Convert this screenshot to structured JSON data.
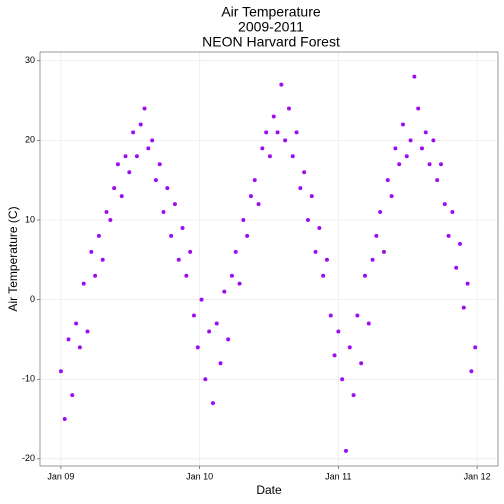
{
  "chart_data": {
    "type": "scatter",
    "title": [
      "Air Temperature",
      "2009-2011",
      "NEON Harvard Forest"
    ],
    "x_label": "Date",
    "y_label": "Air Temperature (C)",
    "color": "#9b0ef0",
    "grid": true,
    "xlim": [
      -55,
      1150
    ],
    "xticks": [
      {
        "value": 0,
        "label": "Jan 09"
      },
      {
        "value": 365,
        "label": "Jan 10"
      },
      {
        "value": 730,
        "label": "Jan 11"
      },
      {
        "value": 1095,
        "label": "Jan 12"
      }
    ],
    "ylim": [
      -20.9,
      31.1
    ],
    "yticks": [
      -20,
      -10,
      0,
      10,
      20,
      30
    ],
    "x": [
      0,
      10,
      20,
      30,
      40,
      50,
      60,
      70,
      80,
      90,
      100,
      110,
      120,
      130,
      140,
      150,
      160,
      170,
      180,
      190,
      200,
      210,
      220,
      230,
      240,
      250,
      260,
      270,
      280,
      290,
      300,
      310,
      320,
      330,
      340,
      350,
      360,
      370,
      380,
      390,
      400,
      410,
      420,
      430,
      440,
      450,
      460,
      470,
      480,
      490,
      500,
      510,
      520,
      530,
      540,
      550,
      560,
      570,
      580,
      590,
      600,
      610,
      620,
      630,
      640,
      650,
      660,
      670,
      680,
      690,
      700,
      710,
      720,
      730,
      740,
      750,
      760,
      770,
      780,
      790,
      800,
      810,
      820,
      830,
      840,
      850,
      860,
      870,
      880,
      890,
      900,
      910,
      920,
      930,
      940,
      950,
      960,
      970,
      980,
      990,
      1000,
      1010,
      1020,
      1030,
      1040,
      1050,
      1060,
      1070,
      1080,
      1090
    ],
    "values": [
      -9,
      -15,
      -5,
      -12,
      -3,
      -6,
      2,
      -4,
      6,
      3,
      8,
      5,
      11,
      10,
      14,
      17,
      13,
      18,
      16,
      21,
      18,
      22,
      24,
      19,
      20,
      15,
      17,
      11,
      14,
      8,
      12,
      5,
      9,
      3,
      6,
      -2,
      -6,
      0,
      -10,
      -4,
      -13,
      -3,
      -8,
      1,
      -5,
      3,
      6,
      2,
      10,
      8,
      13,
      15,
      12,
      19,
      21,
      18,
      23,
      21,
      27,
      20,
      24,
      18,
      21,
      14,
      16,
      10,
      13,
      6,
      9,
      3,
      5,
      -2,
      -7,
      -4,
      -10,
      -19,
      -6,
      -12,
      -2,
      -8,
      3,
      -3,
      5,
      8,
      11,
      6,
      15,
      13,
      19,
      17,
      22,
      18,
      20,
      28,
      24,
      19,
      21,
      17,
      20,
      15,
      17,
      12,
      8,
      11,
      4,
      7,
      -1,
      2,
      -9,
      -6
    ]
  }
}
